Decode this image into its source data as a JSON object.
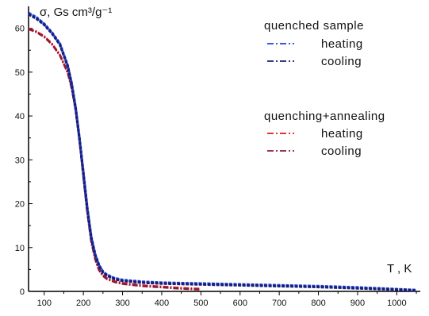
{
  "chart_data": {
    "type": "line",
    "ylabel": "σ, Gs cm³/g⁻¹",
    "xlabel": "T , K",
    "xlim": [
      60,
      1060
    ],
    "ylim": [
      0,
      65
    ],
    "x_ticks": [
      100,
      200,
      300,
      400,
      500,
      600,
      700,
      800,
      900,
      1000
    ],
    "y_ticks": [
      0,
      10,
      20,
      30,
      40,
      50,
      60
    ],
    "grid": false,
    "legend": {
      "placement": "top-right",
      "groups": [
        {
          "title": "quenched sample",
          "entries": [
            "heating",
            "cooling"
          ]
        },
        {
          "title": "quenching+annealing",
          "entries": [
            "heating",
            "cooling"
          ]
        }
      ]
    },
    "series": [
      {
        "name": "heating",
        "group": "quenched sample",
        "color": "#1f3fd6",
        "dash": "dash-dot",
        "x": [
          60,
          80,
          100,
          120,
          140,
          160,
          170,
          180,
          190,
          200,
          210,
          220,
          230,
          240,
          250,
          260,
          280,
          300,
          350,
          400,
          500,
          600,
          700,
          800,
          900,
          1000,
          1050
        ],
        "y": [
          63.5,
          62.5,
          61,
          59,
          56.5,
          51.5,
          47.5,
          42,
          35,
          27,
          19,
          12.5,
          8.5,
          6,
          4.5,
          3.8,
          3,
          2.6,
          2.2,
          2,
          1.8,
          1.6,
          1.4,
          1.2,
          0.9,
          0.5,
          0.3
        ]
      },
      {
        "name": "cooling",
        "group": "quenched sample",
        "color": "#16207a",
        "dash": "dash-dot",
        "x": [
          60,
          80,
          100,
          120,
          140,
          160,
          170,
          180,
          190,
          200,
          210,
          220,
          230,
          240,
          250,
          260,
          280,
          300,
          350,
          400,
          500,
          600,
          700,
          800,
          900,
          1000,
          1050
        ],
        "y": [
          63.2,
          62.2,
          60.8,
          58.8,
          56.3,
          51.3,
          47.3,
          41.8,
          34.8,
          26.8,
          18.8,
          12.3,
          8.3,
          5.8,
          4.3,
          3.6,
          2.8,
          2.4,
          2,
          1.8,
          1.6,
          1.4,
          1.2,
          1,
          0.7,
          0.4,
          0.2
        ]
      },
      {
        "name": "heating",
        "group": "quenching+annealing",
        "color": "#e01818",
        "dash": "dash-dot",
        "x": [
          60,
          80,
          100,
          120,
          140,
          160,
          170,
          180,
          190,
          200,
          210,
          220,
          230,
          240,
          250,
          260,
          280,
          300,
          350,
          400,
          450,
          500
        ],
        "y": [
          60,
          59.3,
          58.2,
          56.5,
          54,
          50,
          46.5,
          41.5,
          34.5,
          26,
          18,
          11.5,
          7.5,
          5,
          3.7,
          3,
          2.3,
          1.9,
          1.4,
          1.1,
          0.8,
          0.6
        ]
      },
      {
        "name": "cooling",
        "group": "quenching+annealing",
        "color": "#8a1a3a",
        "dash": "dash-dot",
        "x": [
          60,
          80,
          100,
          120,
          140,
          160,
          170,
          180,
          190,
          200,
          210,
          220,
          230,
          240,
          250,
          260,
          280,
          300,
          350,
          400,
          450,
          500
        ],
        "y": [
          59.8,
          59.1,
          58,
          56.3,
          53.8,
          49.8,
          46.3,
          41.3,
          34.3,
          25.8,
          17.8,
          11.3,
          7.3,
          4.8,
          3.5,
          2.8,
          2.1,
          1.7,
          1.2,
          0.9,
          0.6,
          0.4
        ]
      }
    ]
  }
}
